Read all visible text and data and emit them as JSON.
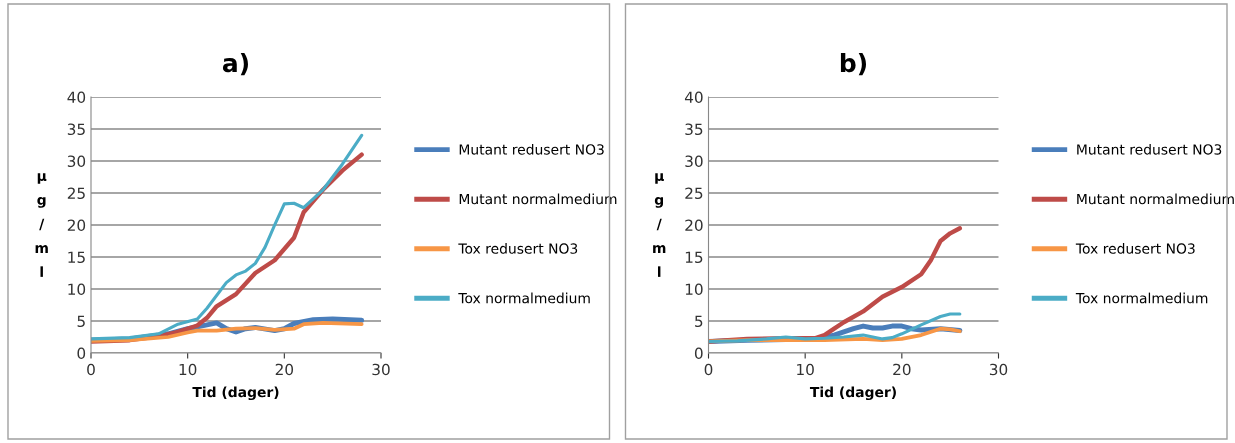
{
  "chart_data": [
    {
      "type": "line",
      "title": "a)",
      "xlabel": "Tid (dager)",
      "ylabel": "µg/ml",
      "xlim": [
        0,
        30
      ],
      "xticks": [
        0,
        10,
        20,
        30
      ],
      "ylim": [
        0,
        40
      ],
      "yticks": [
        0,
        5,
        10,
        15,
        20,
        25,
        30,
        35,
        40
      ],
      "grid": "y",
      "legend": "right",
      "series": [
        {
          "name": "Mutant redusert NO3",
          "color": "#4a7ebb",
          "x": [
            0,
            4,
            8,
            10,
            12,
            13,
            14,
            15,
            16,
            17,
            19,
            20,
            21,
            23,
            25,
            28
          ],
          "values": [
            2,
            2.2,
            3,
            3.8,
            4.4,
            4.7,
            3.8,
            3.3,
            3.8,
            4.0,
            3.5,
            3.8,
            4.6,
            5.2,
            5.3,
            5.1
          ]
        },
        {
          "name": "Mutant normalmedium",
          "color": "#be4b48",
          "x": [
            0,
            4,
            7,
            9,
            11,
            12,
            13,
            15,
            17,
            19,
            21,
            22,
            24,
            26,
            28
          ],
          "values": [
            1.8,
            2.0,
            2.6,
            3.3,
            4.3,
            5.5,
            7.3,
            9.2,
            12.5,
            14.5,
            18,
            22,
            25.5,
            28.5,
            31
          ]
        },
        {
          "name": "Tox redusert NO3",
          "color": "#f79646",
          "x": [
            0,
            4,
            8,
            10,
            11,
            13,
            15,
            17,
            19,
            21,
            22,
            24,
            28
          ],
          "values": [
            1.9,
            2.0,
            2.5,
            3.2,
            3.5,
            3.5,
            3.8,
            3.9,
            3.6,
            3.8,
            4.5,
            4.7,
            4.5
          ]
        },
        {
          "name": "Tox normalmedium",
          "color": "#4bacc6",
          "x": [
            0,
            4,
            7,
            9,
            11,
            12,
            14,
            15,
            16,
            17,
            18,
            19,
            20,
            21,
            22,
            24,
            26,
            28
          ],
          "values": [
            2.2,
            2.4,
            3.0,
            4.5,
            5.3,
            7,
            11,
            12.2,
            12.8,
            14,
            16.5,
            20,
            23.3,
            23.4,
            22.7,
            25.5,
            29.5,
            34
          ]
        }
      ]
    },
    {
      "type": "line",
      "title": "b)",
      "xlabel": "Tid (dager)",
      "ylabel": "µg/ml",
      "xlim": [
        0,
        30
      ],
      "xticks": [
        0,
        10,
        20,
        30
      ],
      "ylim": [
        0,
        40
      ],
      "yticks": [
        0,
        5,
        10,
        15,
        20,
        25,
        30,
        35,
        40
      ],
      "grid": "y",
      "legend": "right",
      "series": [
        {
          "name": "Mutant redusert NO3",
          "color": "#4a7ebb",
          "x": [
            0,
            4,
            8,
            11,
            13,
            15,
            16,
            17,
            18,
            19,
            20,
            21,
            22,
            24,
            26
          ],
          "values": [
            1.8,
            2.0,
            2.1,
            2.2,
            2.8,
            3.8,
            4.2,
            3.9,
            3.9,
            4.2,
            4.2,
            3.8,
            3.6,
            3.8,
            3.5
          ]
        },
        {
          "name": "Mutant normalmedium",
          "color": "#be4b48",
          "x": [
            0,
            4,
            8,
            11,
            12,
            13,
            14,
            16,
            18,
            20,
            22,
            23,
            24,
            25,
            26
          ],
          "values": [
            1.8,
            2.2,
            2.3,
            2.3,
            2.8,
            3.8,
            4.8,
            6.5,
            8.8,
            10.3,
            12.3,
            14.5,
            17.5,
            18.7,
            19.5
          ]
        },
        {
          "name": "Tox redusert NO3",
          "color": "#f79646",
          "x": [
            0,
            4,
            8,
            12,
            16,
            18,
            20,
            22,
            24,
            25,
            26
          ],
          "values": [
            1.8,
            2.0,
            2.0,
            2.0,
            2.2,
            2.0,
            2.2,
            2.8,
            3.8,
            3.7,
            3.4
          ]
        },
        {
          "name": "Tox normalmedium",
          "color": "#4bacc6",
          "x": [
            0,
            3,
            6,
            8,
            10,
            12,
            14,
            16,
            18,
            19,
            20,
            22,
            24,
            25,
            26
          ],
          "values": [
            1.8,
            1.9,
            2.2,
            2.5,
            2.2,
            2.3,
            2.5,
            2.8,
            2.2,
            2.4,
            3,
            4.4,
            5.7,
            6.1,
            6.1
          ]
        }
      ]
    }
  ]
}
